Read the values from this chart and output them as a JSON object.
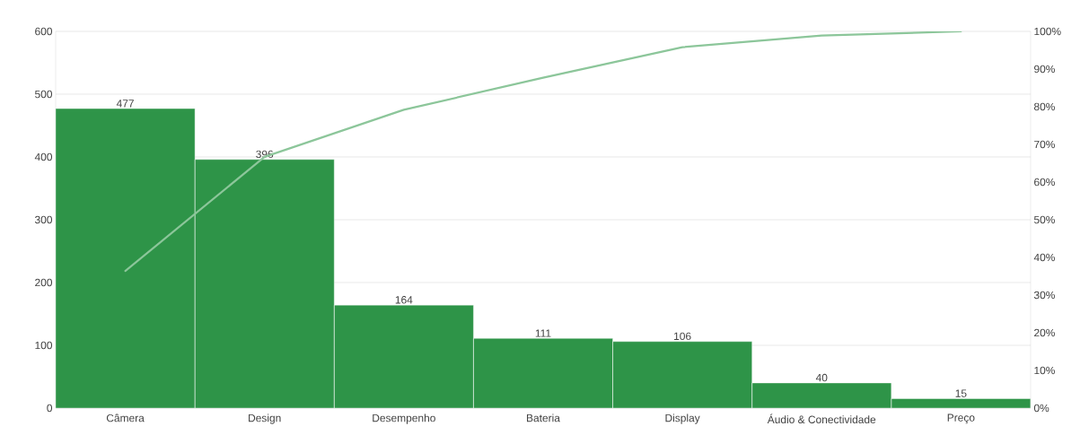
{
  "chart_data": {
    "type": "bar",
    "categories": [
      "Câmera",
      "Design",
      "Desempenho",
      "Bateria",
      "Display",
      "Áudio & Conectividade",
      "Preço"
    ],
    "series": [
      {
        "color": "#2e9448",
        "values": [
          477,
          396,
          164,
          111,
          106,
          40,
          15
        ],
        "value_labels": [
          "477",
          "396",
          "164",
          "111",
          "106",
          "40",
          "15"
        ]
      },
      {
        "type": "line",
        "axis": "y2",
        "color": "#8cc69a",
        "values": [
          36.4,
          66.7,
          79.2,
          87.7,
          95.8,
          98.9,
          100
        ]
      }
    ],
    "ylim": [
      0,
      600
    ],
    "yticks": [
      0,
      100,
      200,
      300,
      400,
      500,
      600
    ],
    "y2lim": [
      0,
      100
    ],
    "y2ticks": [
      {
        "value": 0,
        "label": "0%"
      },
      {
        "value": 10,
        "label": "10%"
      },
      {
        "value": 20,
        "label": "20%"
      },
      {
        "value": 30,
        "label": "30%"
      },
      {
        "value": 40,
        "label": "40%"
      },
      {
        "value": 50,
        "label": "50%"
      },
      {
        "value": 60,
        "label": "60%"
      },
      {
        "value": 70,
        "label": "70%"
      },
      {
        "value": 80,
        "label": "80%"
      },
      {
        "value": 90,
        "label": "90%"
      },
      {
        "value": 100,
        "label": "100%"
      }
    ],
    "grid": "y",
    "legend": false,
    "marker": "none",
    "line_style": "solid"
  }
}
